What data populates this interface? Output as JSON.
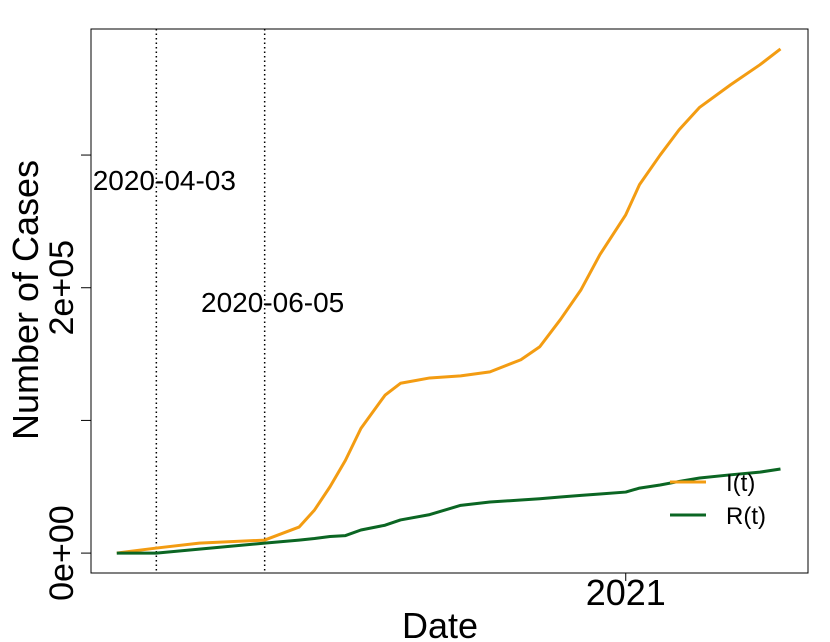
{
  "chart_data": {
    "type": "line",
    "x_label": "Date",
    "y_label": "Number of Cases",
    "x": [
      "2020-03-11",
      "2020-04-03",
      "2020-04-28",
      "2020-06-05",
      "2020-06-25",
      "2020-07-04",
      "2020-07-13",
      "2020-07-22",
      "2020-07-31",
      "2020-08-14",
      "2020-08-23",
      "2020-09-09",
      "2020-09-27",
      "2020-10-14",
      "2020-11-01",
      "2020-11-12",
      "2020-11-24",
      "2020-12-06",
      "2020-12-17",
      "2021-01-01",
      "2021-01-09",
      "2021-01-21",
      "2021-02-01",
      "2021-02-13",
      "2021-03-03",
      "2021-03-20",
      "2021-04-01"
    ],
    "series": [
      {
        "name": "I(t)",
        "color": "#f39c12",
        "values": [
          0,
          3800,
          7500,
          9800,
          19600,
          32500,
          50000,
          70000,
          94000,
          119000,
          128000,
          132000,
          133600,
          136600,
          145700,
          155500,
          176000,
          198500,
          225000,
          255000,
          277700,
          300000,
          319000,
          336000,
          353000,
          368000,
          380000
        ]
      },
      {
        "name": "R(t)",
        "color": "#0b6623",
        "values": [
          0,
          0,
          3000,
          7500,
          9800,
          11000,
          12500,
          13200,
          17400,
          21000,
          25000,
          29000,
          36000,
          38500,
          40000,
          41000,
          42300,
          43500,
          44500,
          46000,
          49000,
          51300,
          54000,
          56600,
          59000,
          61000,
          63400
        ]
      }
    ],
    "xlim": [
      "2020-02-25",
      "2021-04-17"
    ],
    "xticks": [
      {
        "value": "2021-01-01",
        "label": "2021"
      }
    ],
    "ylim": [
      -15000,
      395000
    ],
    "yticks": [
      {
        "value": 0,
        "label": "0e+00"
      },
      {
        "value": 200000,
        "label": "2e+05"
      }
    ],
    "yminorticks": [
      100000,
      300000
    ],
    "vlines": [
      "2020-04-03",
      "2020-06-05"
    ],
    "legend": "bottomright",
    "grid": false
  }
}
